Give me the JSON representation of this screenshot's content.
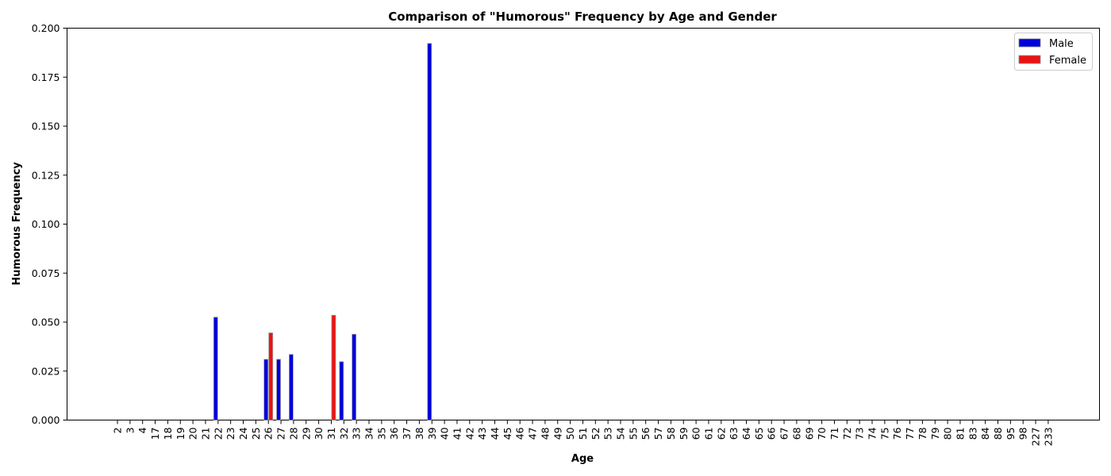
{
  "chart_data": {
    "type": "bar",
    "title": "Comparison of \"Humorous\" Frequency by Age and Gender",
    "xlabel": "Age",
    "ylabel": "Humorous Frequency",
    "ylim": [
      0,
      0.2
    ],
    "yticks": [
      "0.000",
      "0.025",
      "0.050",
      "0.075",
      "0.100",
      "0.125",
      "0.150",
      "0.175",
      "0.200"
    ],
    "grid": false,
    "legend_position": "top-right",
    "categories": [
      "2",
      "3",
      "4",
      "17",
      "18",
      "19",
      "20",
      "21",
      "22",
      "23",
      "24",
      "25",
      "26",
      "27",
      "28",
      "29",
      "30",
      "31",
      "32",
      "33",
      "34",
      "35",
      "36",
      "37",
      "38",
      "39",
      "40",
      "41",
      "42",
      "43",
      "44",
      "45",
      "46",
      "47",
      "48",
      "49",
      "50",
      "51",
      "52",
      "53",
      "54",
      "55",
      "56",
      "57",
      "58",
      "59",
      "60",
      "61",
      "62",
      "63",
      "64",
      "65",
      "66",
      "67",
      "68",
      "69",
      "70",
      "71",
      "72",
      "73",
      "74",
      "75",
      "76",
      "77",
      "78",
      "79",
      "80",
      "81",
      "83",
      "84",
      "88",
      "95",
      "98",
      "227",
      "233"
    ],
    "series": [
      {
        "name": "Male",
        "color": "#0000dd",
        "values": [
          0,
          0,
          0,
          0,
          0,
          0,
          0,
          0,
          0.0525,
          0,
          0,
          0,
          0.031,
          0.031,
          0.0335,
          0,
          0,
          0,
          0.0298,
          0.0438,
          0,
          0,
          0,
          0,
          0,
          0.1922,
          0,
          0,
          0,
          0,
          0,
          0,
          0,
          0,
          0,
          0,
          0,
          0,
          0,
          0,
          0,
          0,
          0,
          0,
          0,
          0,
          0,
          0,
          0,
          0,
          0,
          0,
          0,
          0,
          0,
          0,
          0,
          0,
          0,
          0,
          0,
          0,
          0,
          0,
          0,
          0,
          0,
          0,
          0,
          0,
          0,
          0,
          0,
          0,
          0
        ]
      },
      {
        "name": "Female",
        "color": "#ee1111",
        "values": [
          0,
          0,
          0,
          0,
          0,
          0,
          0,
          0,
          0,
          0,
          0,
          0,
          0.0445,
          0,
          0,
          0,
          0,
          0.0535,
          0,
          0,
          0,
          0,
          0,
          0,
          0,
          0,
          0,
          0,
          0,
          0,
          0,
          0,
          0,
          0,
          0,
          0,
          0,
          0,
          0,
          0,
          0,
          0,
          0,
          0,
          0,
          0,
          0,
          0,
          0,
          0,
          0,
          0,
          0,
          0,
          0,
          0,
          0,
          0,
          0,
          0,
          0,
          0,
          0,
          0,
          0,
          0,
          0,
          0,
          0,
          0,
          0,
          0,
          0,
          0,
          0
        ]
      }
    ]
  }
}
